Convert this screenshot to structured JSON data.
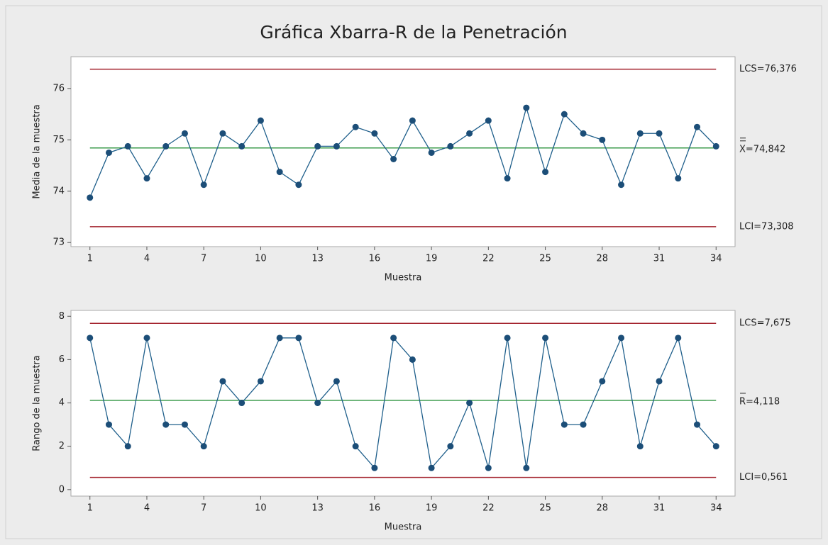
{
  "title": "Gráfica Xbarra-R de la Penetración",
  "chart_data": [
    {
      "type": "line",
      "xlabel": "Muestra",
      "ylabel": "Media de la muestra",
      "x": [
        1,
        2,
        3,
        4,
        5,
        6,
        7,
        8,
        9,
        10,
        11,
        12,
        13,
        14,
        15,
        16,
        17,
        18,
        19,
        20,
        21,
        22,
        23,
        24,
        25,
        26,
        27,
        28,
        29,
        30,
        31,
        32,
        33,
        34
      ],
      "series": [
        {
          "color": "#1f5f8b",
          "values": [
            73.875,
            74.75,
            74.875,
            74.25,
            74.875,
            75.125,
            74.125,
            75.125,
            74.875,
            75.375,
            74.375,
            74.125,
            74.875,
            74.875,
            75.25,
            75.125,
            74.625,
            75.375,
            74.75,
            74.875,
            75.125,
            75.375,
            74.25,
            75.625,
            74.375,
            75.5,
            75.125,
            75.0,
            74.125,
            75.125,
            75.125,
            74.25,
            75.25,
            74.875
          ]
        }
      ],
      "limits": [
        {
          "value": 76.376,
          "label": "LCS=76,376",
          "color": "#a3232d"
        },
        {
          "value": 74.842,
          "label": "X=74,842",
          "color": "#3a9a4a"
        },
        {
          "value": 73.308,
          "label": "LCI=73,308",
          "color": "#a3232d"
        }
      ],
      "xlim": [
        0,
        35
      ],
      "xticks": [
        1,
        4,
        7,
        10,
        13,
        16,
        19,
        22,
        25,
        28,
        31,
        34
      ],
      "ylim": [
        72.92,
        76.62
      ],
      "yticks": [
        73,
        74,
        75,
        76
      ]
    },
    {
      "type": "line",
      "xlabel": "Muestra",
      "ylabel": "Rango de la muestra",
      "x": [
        1,
        2,
        3,
        4,
        5,
        6,
        7,
        8,
        9,
        10,
        11,
        12,
        13,
        14,
        15,
        16,
        17,
        18,
        19,
        20,
        21,
        22,
        23,
        24,
        25,
        26,
        27,
        28,
        29,
        30,
        31,
        32,
        33,
        34
      ],
      "series": [
        {
          "color": "#1f5f8b",
          "values": [
            7,
            3,
            2,
            7,
            3,
            3,
            2,
            5,
            4,
            5,
            7,
            7,
            4,
            5,
            2,
            1,
            7,
            6,
            1,
            2,
            4,
            1,
            7,
            1,
            7,
            3,
            3,
            5,
            7,
            2,
            5,
            7,
            3,
            2
          ]
        }
      ],
      "limits": [
        {
          "value": 7.675,
          "label": "LCS=7,675",
          "color": "#a3232d"
        },
        {
          "value": 4.118,
          "label": "R=4,118",
          "color": "#3a9a4a"
        },
        {
          "value": 0.561,
          "label": "LCI=0,561",
          "color": "#a3232d"
        }
      ],
      "xlim": [
        0,
        35
      ],
      "xticks": [
        1,
        4,
        7,
        10,
        13,
        16,
        19,
        22,
        25,
        28,
        31,
        34
      ],
      "ylim": [
        -0.3,
        8.27
      ],
      "yticks": [
        0,
        2,
        4,
        6,
        8
      ]
    }
  ]
}
